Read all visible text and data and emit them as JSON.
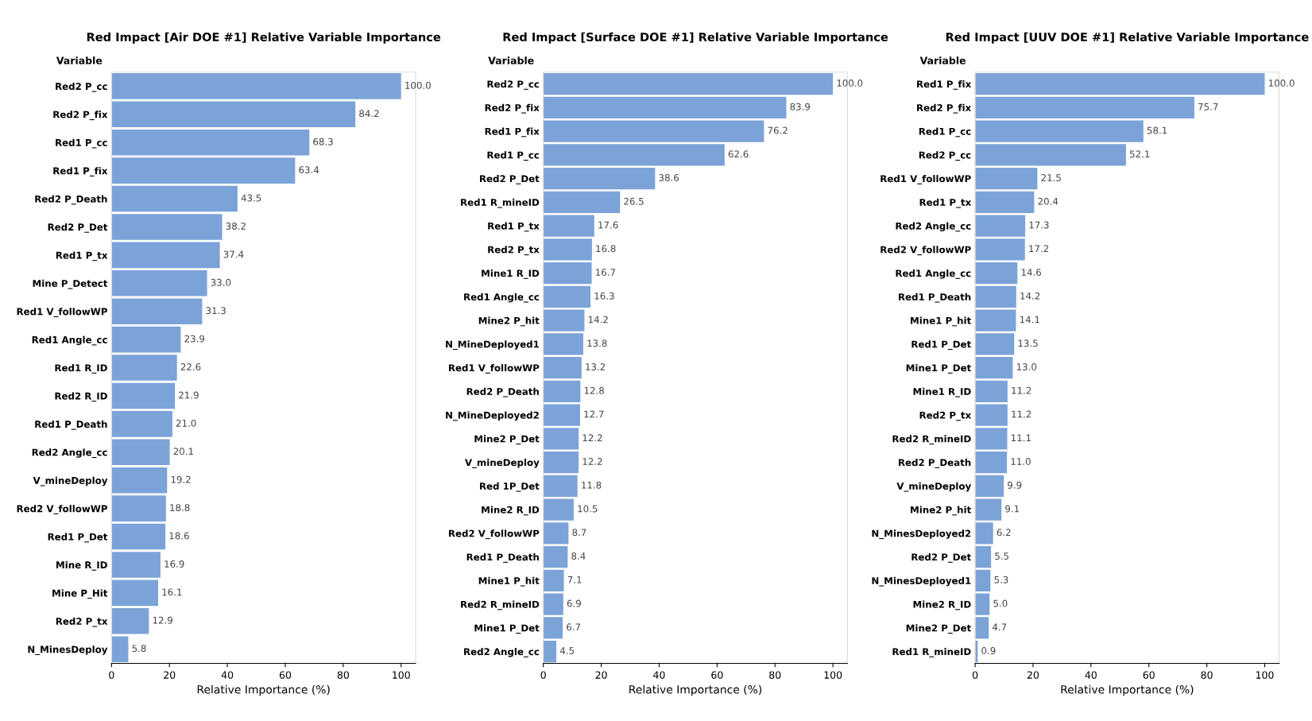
{
  "chart_data": [
    {
      "type": "bar",
      "orientation": "horizontal",
      "title": "Red Impact [Air DOE #1] Relative Variable Importance",
      "xlabel": "Relative Importance (%)",
      "annotations": [
        "Variable"
      ],
      "color": "#7ba3d8",
      "xlim": [
        0,
        105
      ],
      "xticks": [
        0,
        20,
        40,
        60,
        80,
        100
      ],
      "categories": [
        "Red2 P_cc",
        "Red2 P_fix",
        "Red1 P_cc",
        "Red1 P_fix",
        "Red2 P_Death",
        "Red2 P_Det",
        "Red1 P_tx",
        "Mine P_Detect",
        "Red1 V_followWP",
        "Red1 Angle_cc",
        "Red1 R_ID",
        "Red2 R_ID",
        "Red1 P_Death",
        "Red2 Angle_cc",
        "V_mineDeploy",
        "Red2 V_followWP",
        "Red1 P_Det",
        "Mine R_ID",
        "Mine P_Hit",
        "Red2 P_tx",
        "N_MinesDeploy"
      ],
      "values": [
        100.0,
        84.2,
        68.3,
        63.4,
        43.5,
        38.2,
        37.4,
        33.0,
        31.3,
        23.9,
        22.6,
        21.9,
        21.0,
        20.1,
        19.2,
        18.8,
        18.6,
        16.9,
        16.1,
        12.9,
        5.8
      ],
      "value_labels": [
        "100.0",
        "84.2",
        "68.3",
        "63.4",
        "43.5",
        "38.2",
        "37.4",
        "33.0",
        "31.3",
        "23.9",
        "22.6",
        "21.9",
        "21.0",
        "20.1",
        "19.2",
        "18.8",
        "18.6",
        "16.9",
        "16.1",
        "12.9",
        "5.8"
      ]
    },
    {
      "type": "bar",
      "orientation": "horizontal",
      "title": "Red Impact [Surface DOE #1] Relative Variable Importance",
      "xlabel": "Relative Importance (%)",
      "annotations": [
        "Variable"
      ],
      "color": "#7ba3d8",
      "xlim": [
        0,
        105
      ],
      "xticks": [
        0,
        20,
        40,
        60,
        80,
        100
      ],
      "categories": [
        "Red2 P_cc",
        "Red2 P_fix",
        "Red1 P_fix",
        "Red1 P_cc",
        "Red2 P_Det",
        "Red1 R_mineID",
        "Red1 P_tx",
        "Red2 P_tx",
        "Mine1 R_ID",
        "Red1 Angle_cc",
        "Mine2 P_hit",
        "N_MineDeployed1",
        "Red1 V_followWP",
        "Red2 P_Death",
        "N_MineDeployed2",
        "Mine2 P_Det",
        "V_mineDeploy",
        "Red 1P_Det",
        "Mine2 R_ID",
        "Red2 V_followWP",
        "Red1 P_Death",
        "Mine1 P_hit",
        "Red2 R_mineID",
        "Mine1 P_Det",
        "Red2 Angle_cc"
      ],
      "values": [
        100.0,
        83.9,
        76.2,
        62.6,
        38.6,
        26.5,
        17.6,
        16.8,
        16.7,
        16.3,
        14.2,
        13.8,
        13.2,
        12.8,
        12.7,
        12.2,
        12.2,
        11.8,
        10.5,
        8.7,
        8.4,
        7.1,
        6.9,
        6.7,
        4.5
      ],
      "value_labels": [
        "100.0",
        "83.9",
        "76.2",
        "62.6",
        "38.6",
        "26.5",
        "17.6",
        "16.8",
        "16.7",
        "16.3",
        "14.2",
        "13.8",
        "13.2",
        "12.8",
        "12.7",
        "12.2",
        "12.2",
        "11.8",
        "10.5",
        "8.7",
        "8.4",
        "7.1",
        "6.9",
        "6.7",
        "4.5"
      ]
    },
    {
      "type": "bar",
      "orientation": "horizontal",
      "title": "Red Impact [UUV DOE #1] Relative Variable Importance",
      "xlabel": "Relative Importance (%)",
      "annotations": [
        "Variable"
      ],
      "color": "#7ba3d8",
      "xlim": [
        0,
        105
      ],
      "xticks": [
        0,
        20,
        40,
        60,
        80,
        100
      ],
      "categories": [
        "Red1 P_fix",
        "Red2 P_fix",
        "Red1 P_cc",
        "Red2 P_cc",
        "Red1 V_followWP",
        "Red1 P_tx",
        "Red2 Angle_cc",
        "Red2 V_followWP",
        "Red1 Angle_cc",
        "Red1 P_Death",
        "Mine1 P_hit",
        "Red1 P_Det",
        "Mine1 P_Det",
        "Mine1 R_ID",
        "Red2 P_tx",
        "Red2 R_mineID",
        "Red2 P_Death",
        "V_mineDeploy",
        "Mine2 P_hit",
        "N_MinesDeployed2",
        "Red2 P_Det",
        "N_MinesDeployed1",
        "Mine2 R_ID",
        "Mine2 P_Det",
        "Red1 R_mineID"
      ],
      "values": [
        100.0,
        75.7,
        58.1,
        52.1,
        21.5,
        20.4,
        17.3,
        17.2,
        14.6,
        14.2,
        14.1,
        13.5,
        13.0,
        11.2,
        11.2,
        11.1,
        11.0,
        9.9,
        9.1,
        6.2,
        5.5,
        5.3,
        5.0,
        4.7,
        0.9
      ],
      "value_labels": [
        "100.0",
        "75.7",
        "58.1",
        "52.1",
        "21.5",
        "20.4",
        "17.3",
        "17.2",
        "14.6",
        "14.2",
        "14.1",
        "13.5",
        "13.0",
        "11.2",
        "11.2",
        "11.1",
        "11.0",
        "9.9",
        "9.1",
        "6.2",
        "5.5",
        "5.3",
        "5.0",
        "4.7",
        "0.9"
      ]
    }
  ]
}
